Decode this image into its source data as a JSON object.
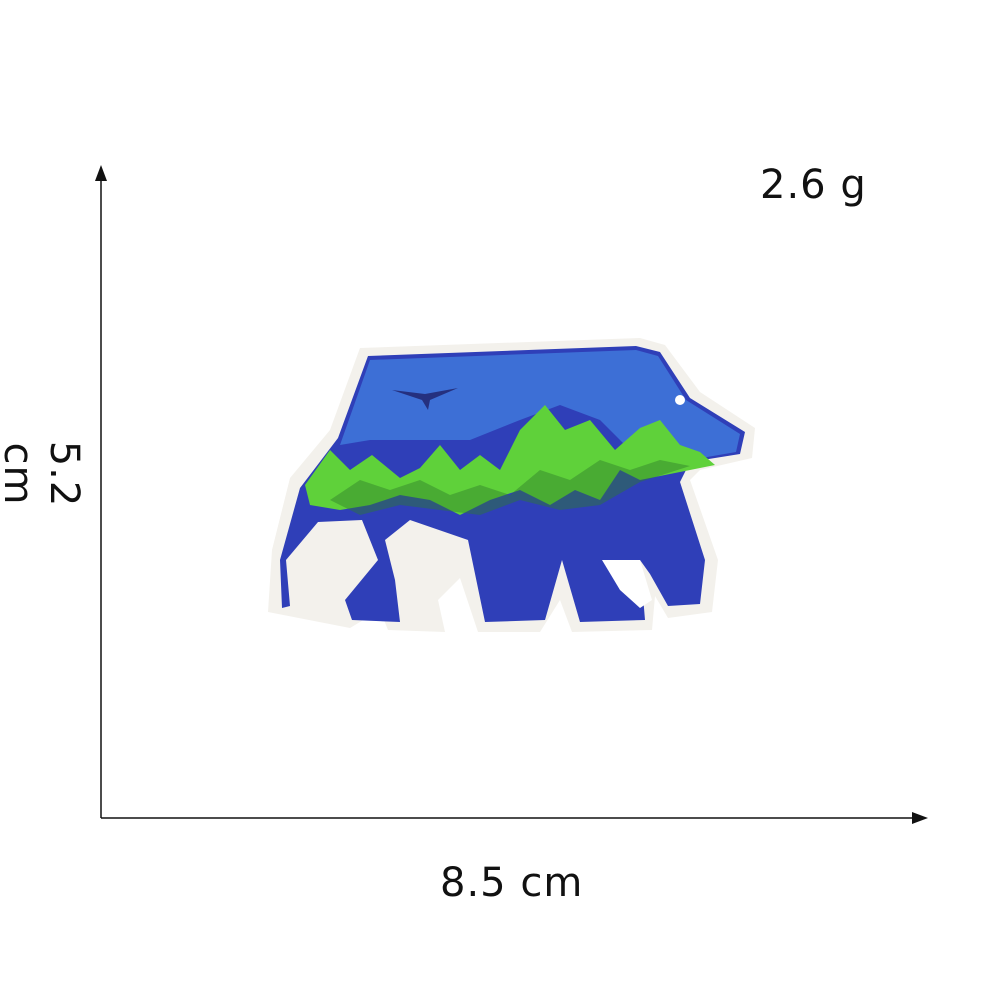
{
  "product": {
    "weight": "2.6 g",
    "width": "8.5 cm",
    "height": "5.2 cm"
  },
  "colors": {
    "background": "#ffffff",
    "axis": "#111111",
    "patch_blue": "#2f3fb8",
    "patch_sky": "#3d6fd6",
    "patch_green": "#5fd13a",
    "patch_edge": "#f3f1ec"
  }
}
